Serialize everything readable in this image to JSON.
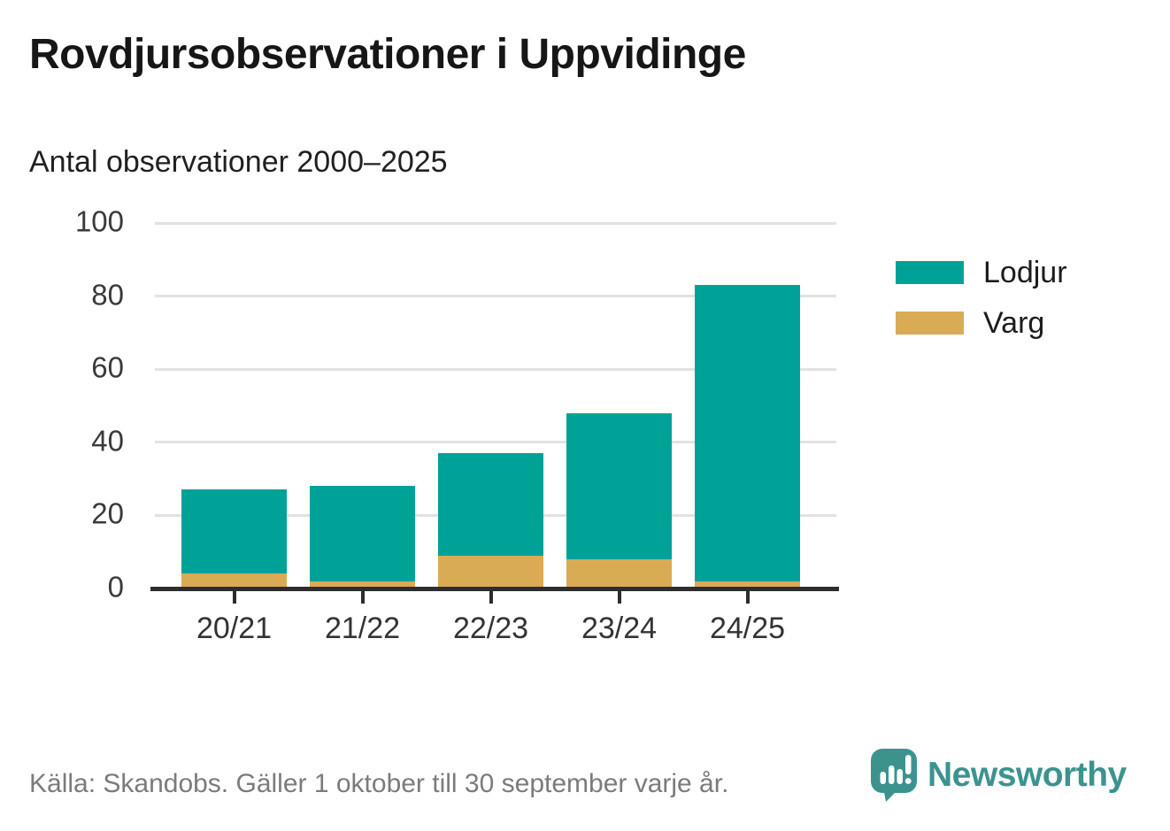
{
  "header": {
    "title": "Rovdjursobservationer i Uppvidinge",
    "subtitle": "Antal observationer 2000–2025"
  },
  "chart_data": {
    "type": "bar",
    "stacked": true,
    "title": "Rovdjursobservationer i Uppvidinge",
    "subtitle": "Antal observationer 2000–2025",
    "categories": [
      "20/21",
      "21/22",
      "22/23",
      "23/24",
      "24/25"
    ],
    "series": [
      {
        "name": "Lodjur",
        "color": "#00a298",
        "values": [
          23,
          26,
          28,
          40,
          81
        ]
      },
      {
        "name": "Varg",
        "color": "#d9ab55",
        "values": [
          4,
          2,
          9,
          8,
          2
        ]
      }
    ],
    "xlabel": "",
    "ylabel": "",
    "ylim": [
      0,
      100
    ],
    "yticks": [
      0,
      20,
      40,
      60,
      80,
      100
    ],
    "grid": "horizontal",
    "legend_position": "right"
  },
  "footer": {
    "source": "Källa: Skandobs. Gäller 1 oktober till 30 september varje år.",
    "brand": "Newsworthy",
    "brand_color": "#3c938e"
  }
}
